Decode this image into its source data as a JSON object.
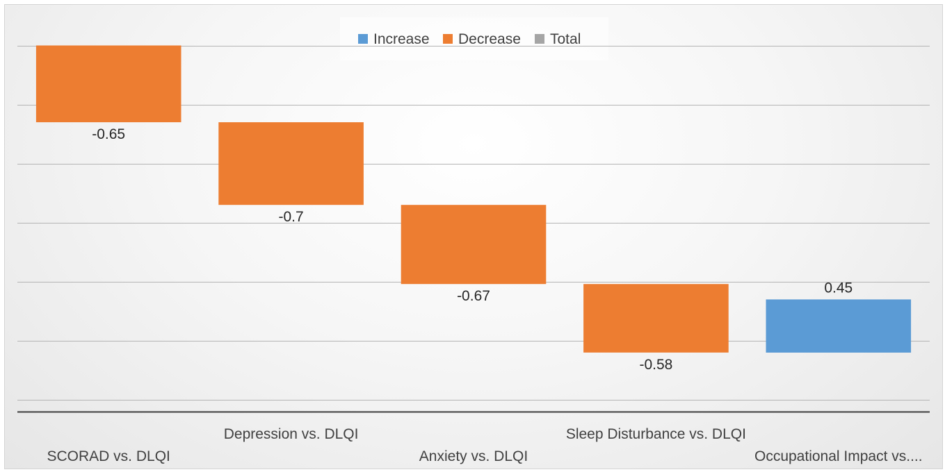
{
  "chart_data": {
    "type": "bar",
    "subtype": "waterfall",
    "categories": [
      "SCORAD vs. DLQI",
      "Depression vs. DLQI",
      "Anxiety vs. DLQI",
      "Sleep Disturbance vs. DLQI",
      "Occupational Impact vs...."
    ],
    "values": [
      -0.65,
      -0.7,
      -0.67,
      -0.58,
      0.45
    ],
    "data_labels": [
      "-0.65",
      "-0.7",
      "-0.67",
      "-0.58",
      "0.45"
    ],
    "cumulative_start": 0,
    "title": "",
    "xlabel": "",
    "ylabel": "",
    "ylim": [
      -3.1,
      0.25
    ],
    "grid": true,
    "legend_position": "top-center",
    "legend": [
      {
        "name": "Increase",
        "color": "#5b9bd5"
      },
      {
        "name": "Decrease",
        "color": "#ed7d31"
      },
      {
        "name": "Total",
        "color": "#a5a5a5"
      }
    ]
  }
}
